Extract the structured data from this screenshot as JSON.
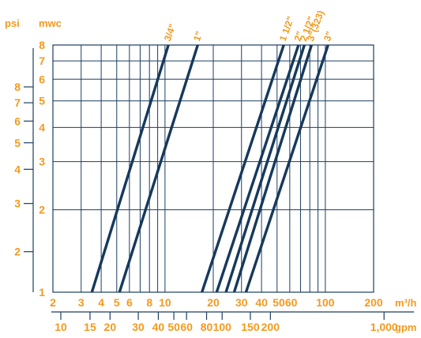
{
  "chart_data": {
    "type": "line",
    "xscale": "log",
    "yscale": "log",
    "title": "",
    "units": {
      "psi": "psi",
      "mwc": "mwc",
      "m3h": "m³/h",
      "gpm": "gpm"
    },
    "x_ticks_m3h": [
      {
        "value": 2,
        "label": "2"
      },
      {
        "value": 3,
        "label": "3"
      },
      {
        "value": 4,
        "label": "4"
      },
      {
        "value": 5,
        "label": "5"
      },
      {
        "value": 6,
        "label": "6"
      },
      {
        "value": 8,
        "label": "8"
      },
      {
        "value": 10,
        "label": "10"
      },
      {
        "value": 20,
        "label": "20"
      },
      {
        "value": 30,
        "label": "30"
      },
      {
        "value": 40,
        "label": "40"
      },
      {
        "value": 50,
        "label": "50"
      },
      {
        "value": 60,
        "label": "60"
      },
      {
        "value": 100,
        "label": "100"
      },
      {
        "value": 200,
        "label": "200"
      }
    ],
    "x_ticks_gpm": [
      {
        "value": 10,
        "label": "10"
      },
      {
        "value": 15,
        "label": "15"
      },
      {
        "value": 20,
        "label": "20"
      },
      {
        "value": 30,
        "label": "30"
      },
      {
        "value": 40,
        "label": "40"
      },
      {
        "value": 50,
        "label": "50"
      },
      {
        "value": 60,
        "label": "60"
      },
      {
        "value": 80,
        "label": "80"
      },
      {
        "value": 100,
        "label": "100"
      },
      {
        "value": 150,
        "label": "150"
      },
      {
        "value": 200,
        "label": "200"
      },
      {
        "value": 1000,
        "label": "1,000"
      }
    ],
    "y_ticks_mwc": [
      {
        "value": 1,
        "label": "1"
      },
      {
        "value": 2,
        "label": "2"
      },
      {
        "value": 3,
        "label": "3"
      },
      {
        "value": 4,
        "label": "4"
      },
      {
        "value": 5,
        "label": "5"
      },
      {
        "value": 6,
        "label": "6"
      },
      {
        "value": 7,
        "label": "7"
      },
      {
        "value": 8,
        "label": "8"
      }
    ],
    "y_ticks_psi": [
      {
        "value": 1,
        "label": "1"
      },
      {
        "value": 2,
        "label": "2"
      },
      {
        "value": 3,
        "label": "3"
      },
      {
        "value": 4,
        "label": "4"
      },
      {
        "value": 5,
        "label": "5"
      },
      {
        "value": 6,
        "label": "6"
      },
      {
        "value": 7,
        "label": "7"
      },
      {
        "value": 8,
        "label": "8"
      }
    ],
    "xlim": [
      2,
      200
    ],
    "ylim": [
      1,
      8
    ],
    "grid": true,
    "series": [
      {
        "name": "3/4\"",
        "x": [
          3.5,
          10.5
        ],
        "y": [
          1,
          8
        ]
      },
      {
        "name": "1\"",
        "x": [
          5.2,
          16
        ],
        "y": [
          1,
          8
        ]
      },
      {
        "name": "1 1/2\"",
        "x": [
          17,
          55
        ],
        "y": [
          1,
          8
        ]
      },
      {
        "name": "2\"",
        "x": [
          21,
          68
        ],
        "y": [
          1,
          8
        ]
      },
      {
        "name": "2 1/2\"",
        "x": [
          24,
          74
        ],
        "y": [
          1,
          8
        ]
      },
      {
        "name": "3\"(323)",
        "x": [
          27,
          82
        ],
        "y": [
          1,
          8
        ]
      },
      {
        "name": "3\"",
        "x": [
          32,
          104
        ],
        "y": [
          1,
          8
        ]
      }
    ],
    "colors": {
      "line": "#16395c",
      "grid": "#1c3e61",
      "label": "#f39a1e"
    }
  }
}
